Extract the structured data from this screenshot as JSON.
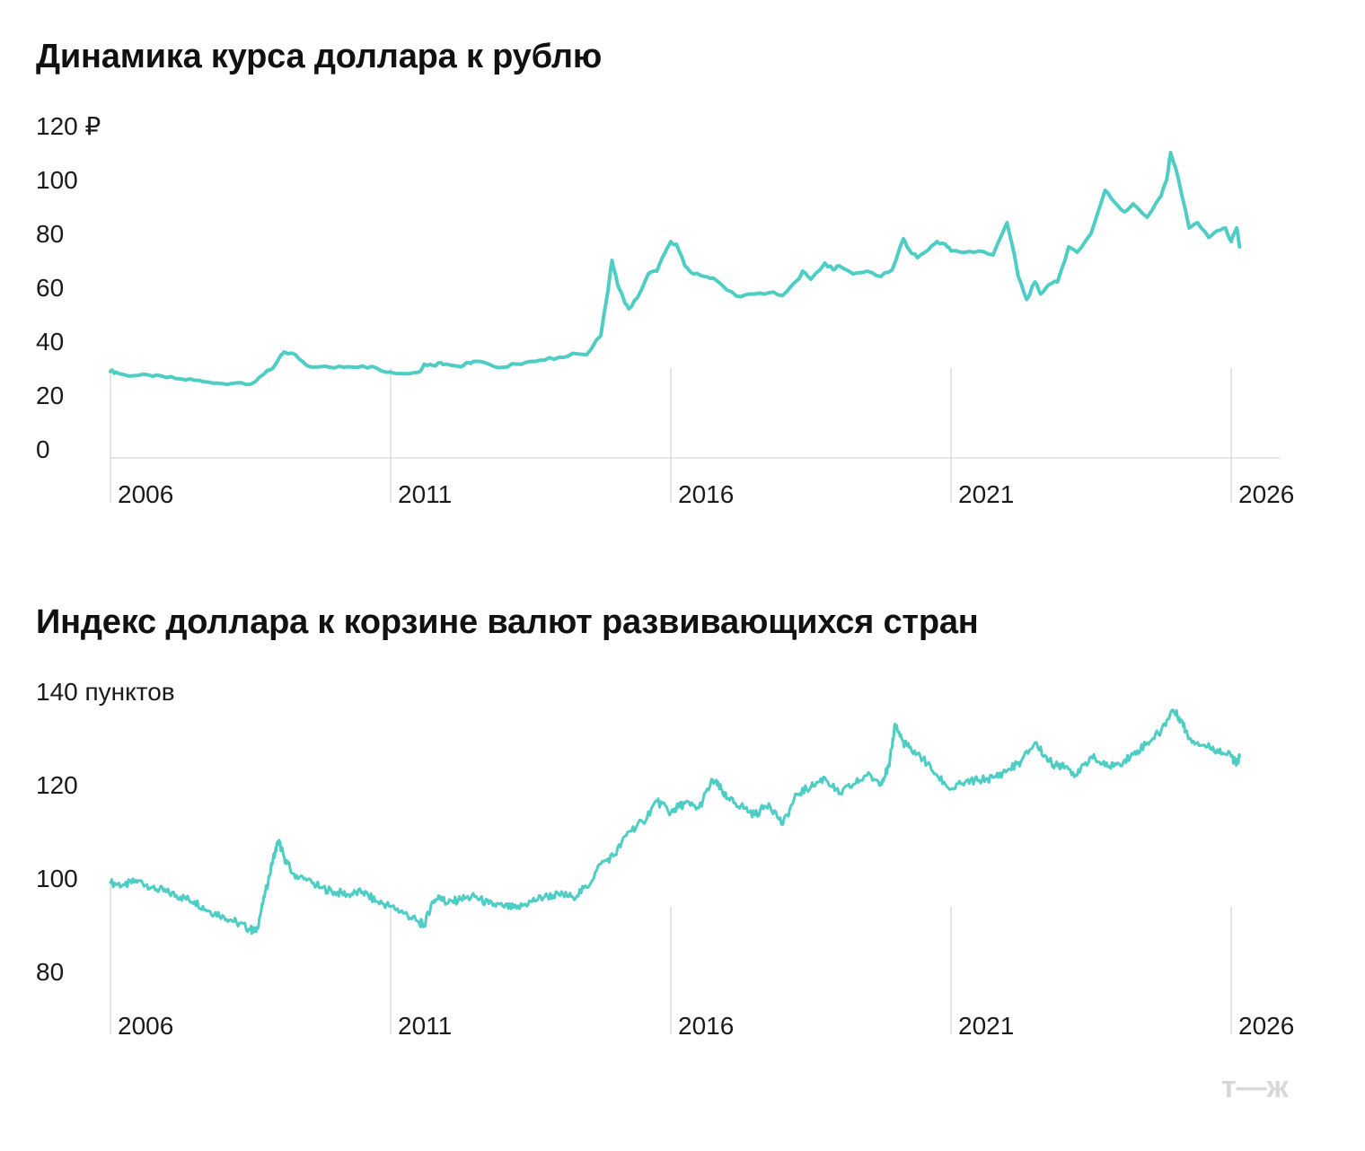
{
  "chart_data": [
    {
      "type": "line",
      "title": "Динамика курса доллара к рублю",
      "y_unit_label": "120 ₽",
      "x_ticks": [
        "2006",
        "2011",
        "2016",
        "2021",
        "2026"
      ],
      "y_ticks": [
        "120 ₽",
        "100",
        "80",
        "60",
        "40",
        "20",
        "0"
      ],
      "y_tick_values": [
        120,
        100,
        80,
        60,
        40,
        20,
        0
      ],
      "ylim": [
        0,
        120
      ],
      "xlim": [
        2006.0,
        2026.3
      ],
      "grid": "vertical at year ticks",
      "series": [
        {
          "color": "#4ecdc4",
          "x": [
            2006.0,
            2006.1,
            2006.25,
            2006.5,
            2006.75,
            2007.0,
            2007.25,
            2007.5,
            2007.75,
            2008.0,
            2008.25,
            2008.5,
            2008.75,
            2008.9,
            2009.1,
            2009.3,
            2009.5,
            2009.75,
            2010.0,
            2010.25,
            2010.5,
            2010.75,
            2011.0,
            2011.25,
            2011.5,
            2011.6,
            2011.75,
            2011.9,
            2012.0,
            2012.25,
            2012.4,
            2012.5,
            2012.75,
            2013.0,
            2013.25,
            2013.5,
            2013.75,
            2014.0,
            2014.25,
            2014.5,
            2014.75,
            2014.85,
            2014.95,
            2015.05,
            2015.15,
            2015.25,
            2015.4,
            2015.6,
            2015.75,
            2015.9,
            2016.0,
            2016.1,
            2016.25,
            2016.4,
            2016.6,
            2016.75,
            2017.0,
            2017.25,
            2017.5,
            2017.75,
            2018.0,
            2018.25,
            2018.35,
            2018.5,
            2018.75,
            2018.9,
            2019.0,
            2019.25,
            2019.5,
            2019.75,
            2019.95,
            2020.15,
            2020.25,
            2020.4,
            2020.6,
            2020.75,
            2020.9,
            2021.0,
            2021.25,
            2021.5,
            2021.75,
            2022.0,
            2022.1,
            2022.2,
            2022.35,
            2022.5,
            2022.6,
            2022.75,
            2022.9,
            2023.1,
            2023.25,
            2023.5,
            2023.75,
            2023.9,
            2024.1,
            2024.25,
            2024.5,
            2024.75,
            2024.85,
            2024.92,
            2025.05,
            2025.25,
            2025.4,
            2025.6,
            2025.75,
            2025.9,
            2026.0,
            2026.1,
            2026.15
          ],
          "values": [
            28.8,
            28.5,
            27.5,
            27.3,
            27.0,
            26.5,
            26.0,
            25.5,
            24.8,
            24.2,
            24.5,
            24.0,
            28.0,
            30.0,
            36.0,
            35.0,
            31.0,
            30.5,
            30.1,
            30.5,
            30.8,
            30.0,
            28.5,
            27.9,
            28.5,
            31.5,
            31.0,
            32.0,
            31.5,
            30.5,
            32.0,
            32.5,
            31.5,
            30.3,
            31.5,
            32.5,
            33.0,
            34.0,
            35.5,
            35.0,
            42.0,
            55.0,
            70.0,
            61.0,
            56.0,
            52.0,
            56.0,
            65.0,
            66.0,
            73.0,
            77.0,
            76.0,
            68.0,
            65.0,
            64.0,
            63.5,
            59.0,
            56.5,
            57.5,
            58.0,
            57.0,
            62.5,
            66.0,
            63.0,
            69.0,
            66.5,
            68.0,
            65.0,
            66.0,
            64.0,
            66.5,
            78.0,
            74.0,
            71.0,
            74.0,
            77.0,
            76.0,
            73.5,
            73.0,
            73.5,
            72.0,
            84.0,
            75.0,
            64.0,
            55.5,
            62.0,
            57.5,
            61.0,
            62.0,
            75.0,
            73.0,
            80.0,
            96.0,
            92.0,
            88.0,
            91.0,
            86.0,
            94.0,
            100.0,
            110.0,
            101.0,
            82.0,
            84.0,
            78.5,
            81.0,
            82.0,
            77.0,
            82.0,
            75.0
          ]
        }
      ]
    },
    {
      "type": "line",
      "title": "Индекс доллара к корзине валют развивающихся стран",
      "y_unit_label": "140 пунктов",
      "x_ticks": [
        "2006",
        "2011",
        "2016",
        "2021",
        "2026"
      ],
      "y_ticks": [
        "140 пунктов",
        "120",
        "100",
        "80"
      ],
      "y_tick_values": [
        140,
        120,
        100,
        80
      ],
      "ylim": [
        80,
        140
      ],
      "xlim": [
        2006.0,
        2026.3
      ],
      "grid": "vertical at year ticks",
      "series": [
        {
          "color": "#4ecdc4",
          "x": [
            2006.0,
            2006.25,
            2006.5,
            2006.75,
            2007.0,
            2007.25,
            2007.5,
            2007.75,
            2008.0,
            2008.25,
            2008.5,
            2008.6,
            2008.75,
            2008.9,
            2009.0,
            2009.1,
            2009.25,
            2009.5,
            2009.75,
            2010.0,
            2010.25,
            2010.5,
            2010.75,
            2011.0,
            2011.25,
            2011.5,
            2011.6,
            2011.75,
            2011.9,
            2012.0,
            2012.25,
            2012.5,
            2012.75,
            2013.0,
            2013.25,
            2013.5,
            2013.75,
            2014.0,
            2014.25,
            2014.5,
            2014.75,
            2015.0,
            2015.25,
            2015.5,
            2015.75,
            2016.0,
            2016.1,
            2016.25,
            2016.5,
            2016.75,
            2016.9,
            2017.0,
            2017.25,
            2017.5,
            2017.75,
            2018.0,
            2018.25,
            2018.5,
            2018.75,
            2019.0,
            2019.25,
            2019.5,
            2019.75,
            2019.9,
            2020.0,
            2020.15,
            2020.25,
            2020.5,
            2020.75,
            2021.0,
            2021.25,
            2021.5,
            2021.75,
            2022.0,
            2022.25,
            2022.5,
            2022.75,
            2022.9,
            2023.0,
            2023.25,
            2023.5,
            2023.75,
            2024.0,
            2024.25,
            2024.5,
            2024.75,
            2024.95,
            2025.1,
            2025.25,
            2025.5,
            2025.75,
            2026.0,
            2026.1,
            2026.15
          ],
          "values": [
            99.0,
            98.5,
            99.5,
            98.0,
            97.0,
            96.0,
            95.0,
            93.0,
            92.0,
            90.5,
            89.0,
            88.5,
            96.0,
            104.0,
            108.0,
            104.5,
            101.0,
            99.5,
            98.0,
            97.0,
            96.5,
            97.0,
            95.0,
            94.0,
            92.5,
            90.5,
            90.0,
            95.0,
            96.0,
            94.5,
            95.5,
            96.0,
            94.5,
            94.0,
            93.5,
            95.0,
            96.0,
            96.5,
            96.0,
            98.0,
            103.0,
            105.0,
            110.0,
            112.0,
            116.5,
            114.0,
            115.0,
            116.0,
            115.0,
            121.0,
            119.0,
            117.0,
            115.5,
            113.5,
            116.0,
            111.5,
            118.0,
            119.5,
            121.5,
            118.0,
            120.0,
            122.0,
            120.5,
            124.0,
            133.0,
            129.0,
            128.0,
            125.5,
            122.0,
            119.0,
            120.5,
            121.0,
            121.5,
            123.0,
            125.0,
            129.0,
            125.0,
            124.0,
            124.5,
            122.0,
            126.0,
            124.0,
            124.5,
            126.5,
            129.0,
            131.5,
            136.0,
            134.0,
            130.0,
            128.5,
            127.5,
            126.0,
            124.5,
            126.0
          ]
        }
      ]
    }
  ],
  "watermark": "т—ж"
}
